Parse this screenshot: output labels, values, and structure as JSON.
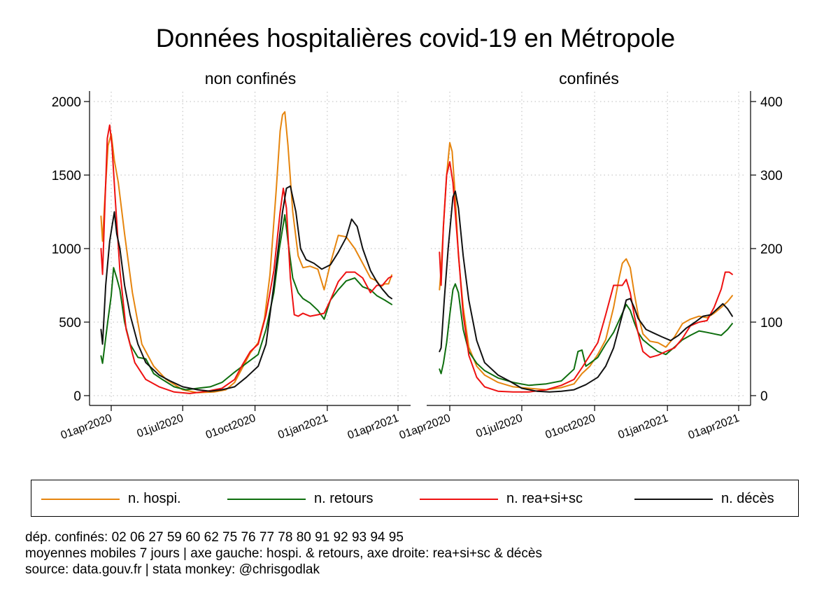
{
  "title": "Données hospitalières covid-19 en Métropole",
  "legend": {
    "items": [
      {
        "label": "n. hospi.",
        "color": "#e6850e"
      },
      {
        "label": "n. retours",
        "color": "#0e6e0e"
      },
      {
        "label": "n. rea+si+sc",
        "color": "#ee1111"
      },
      {
        "label": "n. décès",
        "color": "#111111"
      }
    ]
  },
  "notes": {
    "line1": "dép. confinés: 02 06 27 59 60 62 75 76 77 78 80 91 92 93 94 95",
    "line2": "moyennes mobiles 7 jours | axe gauche: hospi. & retours, axe droite: rea+si+sc & décès",
    "line3": "source: data.gouv.fr | stata monkey: @chrisgodlak"
  },
  "chart_data": {
    "type": "line",
    "grid": true,
    "legend_position": "bottom",
    "x_ticks": [
      "01apr2020",
      "01jul2020",
      "01oct2020",
      "01jan2021",
      "01apr2021"
    ],
    "x_tick_days": [
      0,
      91,
      183,
      275,
      365
    ],
    "x_range": [
      "2020-03-20",
      "2021-04-10"
    ],
    "left_axis": {
      "series": [
        "n. hospi.",
        "n. retours"
      ],
      "ylim": [
        0,
        2000
      ],
      "ticks": [
        0,
        500,
        1000,
        1500,
        2000
      ]
    },
    "right_axis": {
      "series": [
        "n. rea+si+sc",
        "n. décès"
      ],
      "ylim": [
        0,
        400
      ],
      "ticks": [
        0,
        100,
        200,
        300,
        400
      ]
    },
    "panels": [
      {
        "title": "non confinés",
        "series": [
          {
            "name": "n. hospi.",
            "axis": "left",
            "color": "#e6850e",
            "x": [
              "2020-03-19",
              "2020-03-21",
              "2020-03-24",
              "2020-03-28",
              "2020-04-01",
              "2020-04-05",
              "2020-04-10",
              "2020-04-18",
              "2020-04-28",
              "2020-05-10",
              "2020-05-25",
              "2020-06-10",
              "2020-07-01",
              "2020-07-20",
              "2020-08-10",
              "2020-08-25",
              "2020-09-05",
              "2020-09-15",
              "2020-09-25",
              "2020-10-05",
              "2020-10-13",
              "2020-10-20",
              "2020-10-28",
              "2020-11-02",
              "2020-11-05",
              "2020-11-08",
              "2020-11-12",
              "2020-11-18",
              "2020-11-25",
              "2020-12-01",
              "2020-12-10",
              "2020-12-20",
              "2020-12-28",
              "2021-01-05",
              "2021-01-15",
              "2021-01-25",
              "2021-02-05",
              "2021-02-15",
              "2021-02-25",
              "2021-03-05",
              "2021-03-10",
              "2021-03-15",
              "2021-03-20",
              "2021-03-24"
            ],
            "y": [
              1220,
              1050,
              1350,
              1700,
              1780,
              1600,
              1450,
              1100,
              700,
              350,
              200,
              110,
              40,
              20,
              25,
              40,
              90,
              190,
              290,
              360,
              520,
              820,
              1400,
              1800,
              1910,
              1930,
              1700,
              1250,
              950,
              870,
              880,
              860,
              720,
              900,
              1090,
              1080,
              1000,
              900,
              800,
              780,
              740,
              760,
              760,
              820
            ]
          },
          {
            "name": "n. retours",
            "axis": "left",
            "color": "#0e6e0e",
            "x": [
              "2020-03-19",
              "2020-03-21",
              "2020-03-24",
              "2020-03-28",
              "2020-04-01",
              "2020-04-04",
              "2020-04-08",
              "2020-04-12",
              "2020-04-18",
              "2020-04-25",
              "2020-05-05",
              "2020-05-15",
              "2020-05-25",
              "2020-06-05",
              "2020-06-20",
              "2020-07-05",
              "2020-07-20",
              "2020-08-05",
              "2020-08-20",
              "2020-09-05",
              "2020-09-20",
              "2020-10-05",
              "2020-10-15",
              "2020-10-25",
              "2020-11-01",
              "2020-11-08",
              "2020-11-12",
              "2020-11-18",
              "2020-11-25",
              "2020-12-01",
              "2020-12-10",
              "2020-12-20",
              "2020-12-28",
              "2021-01-05",
              "2021-01-15",
              "2021-01-25",
              "2021-02-05",
              "2021-02-15",
              "2021-02-25",
              "2021-03-05",
              "2021-03-15",
              "2021-03-24"
            ],
            "y": [
              270,
              220,
              350,
              520,
              680,
              870,
              800,
              720,
              500,
              350,
              260,
              250,
              150,
              110,
              60,
              40,
              50,
              60,
              90,
              160,
              220,
              280,
              450,
              700,
              1000,
              1230,
              1050,
              800,
              700,
              660,
              630,
              580,
              520,
              650,
              720,
              780,
              800,
              740,
              720,
              680,
              650,
              620
            ]
          },
          {
            "name": "n. rea+si+sc",
            "axis": "right",
            "color": "#ee1111",
            "x": [
              "2020-03-19",
              "2020-03-21",
              "2020-03-24",
              "2020-03-27",
              "2020-03-30",
              "2020-04-02",
              "2020-04-06",
              "2020-04-12",
              "2020-04-20",
              "2020-05-01",
              "2020-05-15",
              "2020-06-01",
              "2020-06-20",
              "2020-07-10",
              "2020-08-01",
              "2020-08-20",
              "2020-09-05",
              "2020-09-15",
              "2020-09-25",
              "2020-10-05",
              "2020-10-15",
              "2020-10-25",
              "2020-11-02",
              "2020-11-06",
              "2020-11-10",
              "2020-11-15",
              "2020-11-20",
              "2020-11-25",
              "2020-12-01",
              "2020-12-10",
              "2020-12-20",
              "2020-12-28",
              "2021-01-05",
              "2021-01-15",
              "2021-01-25",
              "2021-02-05",
              "2021-02-15",
              "2021-02-25",
              "2021-03-05",
              "2021-03-12",
              "2021-03-20",
              "2021-03-24"
            ],
            "y": [
              200,
              165,
              260,
              350,
              368,
              340,
              270,
              170,
              90,
              45,
              22,
              12,
              5,
              3,
              6,
              10,
              22,
              42,
              60,
              70,
              110,
              170,
              250,
              282,
              255,
              160,
              110,
              108,
              112,
              108,
              110,
              112,
              130,
              155,
              168,
              168,
              160,
              140,
              150,
              150,
              160,
              162
            ]
          },
          {
            "name": "n. décès",
            "axis": "right",
            "color": "#111111",
            "x": [
              "2020-03-19",
              "2020-03-21",
              "2020-03-25",
              "2020-03-30",
              "2020-04-05",
              "2020-04-08",
              "2020-04-12",
              "2020-04-18",
              "2020-04-25",
              "2020-05-05",
              "2020-05-15",
              "2020-06-01",
              "2020-06-15",
              "2020-07-01",
              "2020-07-20",
              "2020-08-05",
              "2020-08-20",
              "2020-09-05",
              "2020-09-20",
              "2020-10-05",
              "2020-10-15",
              "2020-10-25",
              "2020-11-05",
              "2020-11-10",
              "2020-11-15",
              "2020-11-22",
              "2020-11-28",
              "2020-12-05",
              "2020-12-15",
              "2020-12-25",
              "2021-01-05",
              "2021-01-15",
              "2021-01-25",
              "2021-02-01",
              "2021-02-08",
              "2021-02-15",
              "2021-02-25",
              "2021-03-05",
              "2021-03-12",
              "2021-03-20",
              "2021-03-24"
            ],
            "y": [
              90,
              70,
              150,
              210,
              250,
              220,
              200,
              150,
              110,
              70,
              45,
              28,
              20,
              12,
              8,
              6,
              8,
              12,
              25,
              40,
              70,
              150,
              250,
              282,
              285,
              250,
              200,
              185,
              180,
              172,
              178,
              195,
              215,
              240,
              230,
              200,
              170,
              155,
              145,
              135,
              132
            ]
          }
        ]
      },
      {
        "title": "confinés",
        "series": [
          {
            "name": "n. hospi.",
            "axis": "left",
            "color": "#e6850e",
            "x": [
              "2020-03-19",
              "2020-03-21",
              "2020-03-24",
              "2020-03-28",
              "2020-04-01",
              "2020-04-04",
              "2020-04-08",
              "2020-04-12",
              "2020-04-18",
              "2020-04-25",
              "2020-05-05",
              "2020-05-15",
              "2020-06-01",
              "2020-06-20",
              "2020-07-10",
              "2020-08-01",
              "2020-08-20",
              "2020-09-05",
              "2020-09-15",
              "2020-09-25",
              "2020-10-05",
              "2020-10-15",
              "2020-10-25",
              "2020-11-01",
              "2020-11-05",
              "2020-11-10",
              "2020-11-15",
              "2020-11-20",
              "2020-11-25",
              "2020-12-01",
              "2020-12-10",
              "2020-12-20",
              "2020-12-30",
              "2021-01-10",
              "2021-01-20",
              "2021-01-30",
              "2021-02-10",
              "2021-02-20",
              "2021-03-01",
              "2021-03-10",
              "2021-03-18",
              "2021-03-24"
            ],
            "y": [
              720,
              860,
              1150,
              1500,
              1720,
              1660,
              1350,
              950,
              600,
              330,
              200,
              140,
              90,
              60,
              50,
              40,
              55,
              80,
              150,
              200,
              280,
              380,
              600,
              800,
              900,
              930,
              870,
              700,
              550,
              420,
              370,
              360,
              330,
              400,
              490,
              520,
              540,
              530,
              560,
              600,
              640,
              680
            ]
          },
          {
            "name": "n. retours",
            "axis": "left",
            "color": "#0e6e0e",
            "x": [
              "2020-03-19",
              "2020-03-21",
              "2020-03-24",
              "2020-03-28",
              "2020-04-01",
              "2020-04-05",
              "2020-04-08",
              "2020-04-12",
              "2020-04-18",
              "2020-04-25",
              "2020-05-05",
              "2020-05-15",
              "2020-06-01",
              "2020-06-20",
              "2020-07-10",
              "2020-08-01",
              "2020-08-20",
              "2020-09-05",
              "2020-09-10",
              "2020-09-15",
              "2020-09-20",
              "2020-09-25",
              "2020-10-05",
              "2020-10-15",
              "2020-10-25",
              "2020-11-05",
              "2020-11-10",
              "2020-11-15",
              "2020-11-20",
              "2020-11-25",
              "2020-12-01",
              "2020-12-10",
              "2020-12-20",
              "2020-12-30",
              "2021-01-10",
              "2021-01-20",
              "2021-01-30",
              "2021-02-10",
              "2021-02-20",
              "2021-03-01",
              "2021-03-10",
              "2021-03-18",
              "2021-03-24"
            ],
            "y": [
              180,
              150,
              220,
              360,
              550,
              720,
              760,
              700,
              450,
              300,
              220,
              170,
              120,
              90,
              70,
              80,
              100,
              180,
              300,
              310,
              200,
              220,
              260,
              350,
              430,
              560,
              620,
              580,
              500,
              430,
              380,
              340,
              300,
              280,
              330,
              380,
              410,
              440,
              430,
              420,
              410,
              450,
              490
            ]
          },
          {
            "name": "n. rea+si+sc",
            "axis": "right",
            "color": "#ee1111",
            "x": [
              "2020-03-19",
              "2020-03-21",
              "2020-03-24",
              "2020-03-28",
              "2020-04-01",
              "2020-04-05",
              "2020-04-10",
              "2020-04-18",
              "2020-04-25",
              "2020-05-05",
              "2020-05-15",
              "2020-06-01",
              "2020-06-20",
              "2020-07-10",
              "2020-08-01",
              "2020-08-20",
              "2020-09-05",
              "2020-09-15",
              "2020-09-25",
              "2020-10-05",
              "2020-10-15",
              "2020-10-25",
              "2020-11-05",
              "2020-11-10",
              "2020-11-15",
              "2020-11-20",
              "2020-11-25",
              "2020-12-01",
              "2020-12-10",
              "2020-12-20",
              "2020-12-30",
              "2021-01-10",
              "2021-01-20",
              "2021-01-30",
              "2021-02-10",
              "2021-02-20",
              "2021-03-01",
              "2021-03-10",
              "2021-03-15",
              "2021-03-20",
              "2021-03-24"
            ],
            "y": [
              195,
              150,
              230,
              300,
              318,
              290,
              220,
              110,
              55,
              25,
              12,
              6,
              5,
              5,
              8,
              14,
              22,
              38,
              55,
              72,
              110,
              150,
              150,
              158,
              140,
              110,
              85,
              60,
              52,
              55,
              60,
              65,
              78,
              95,
              100,
              102,
              120,
              145,
              168,
              168,
              165
            ]
          },
          {
            "name": "n. décès",
            "axis": "right",
            "color": "#111111",
            "x": [
              "2020-03-19",
              "2020-03-21",
              "2020-03-25",
              "2020-03-30",
              "2020-04-05",
              "2020-04-08",
              "2020-04-12",
              "2020-04-18",
              "2020-04-25",
              "2020-05-05",
              "2020-05-15",
              "2020-06-01",
              "2020-06-15",
              "2020-07-01",
              "2020-07-20",
              "2020-08-05",
              "2020-08-20",
              "2020-09-05",
              "2020-09-20",
              "2020-10-05",
              "2020-10-15",
              "2020-10-25",
              "2020-11-05",
              "2020-11-10",
              "2020-11-15",
              "2020-11-20",
              "2020-11-25",
              "2020-12-05",
              "2020-12-15",
              "2020-12-25",
              "2021-01-05",
              "2021-01-15",
              "2021-01-25",
              "2021-02-05",
              "2021-02-15",
              "2021-02-25",
              "2021-03-05",
              "2021-03-12",
              "2021-03-18",
              "2021-03-24"
            ],
            "y": [
              60,
              65,
              130,
              200,
              270,
              278,
              255,
              190,
              130,
              75,
              45,
              28,
              20,
              10,
              6,
              5,
              6,
              8,
              15,
              25,
              40,
              65,
              110,
              130,
              132,
              120,
              105,
              90,
              85,
              80,
              75,
              82,
              92,
              100,
              108,
              110,
              118,
              125,
              118,
              108
            ]
          }
        ]
      }
    ]
  }
}
